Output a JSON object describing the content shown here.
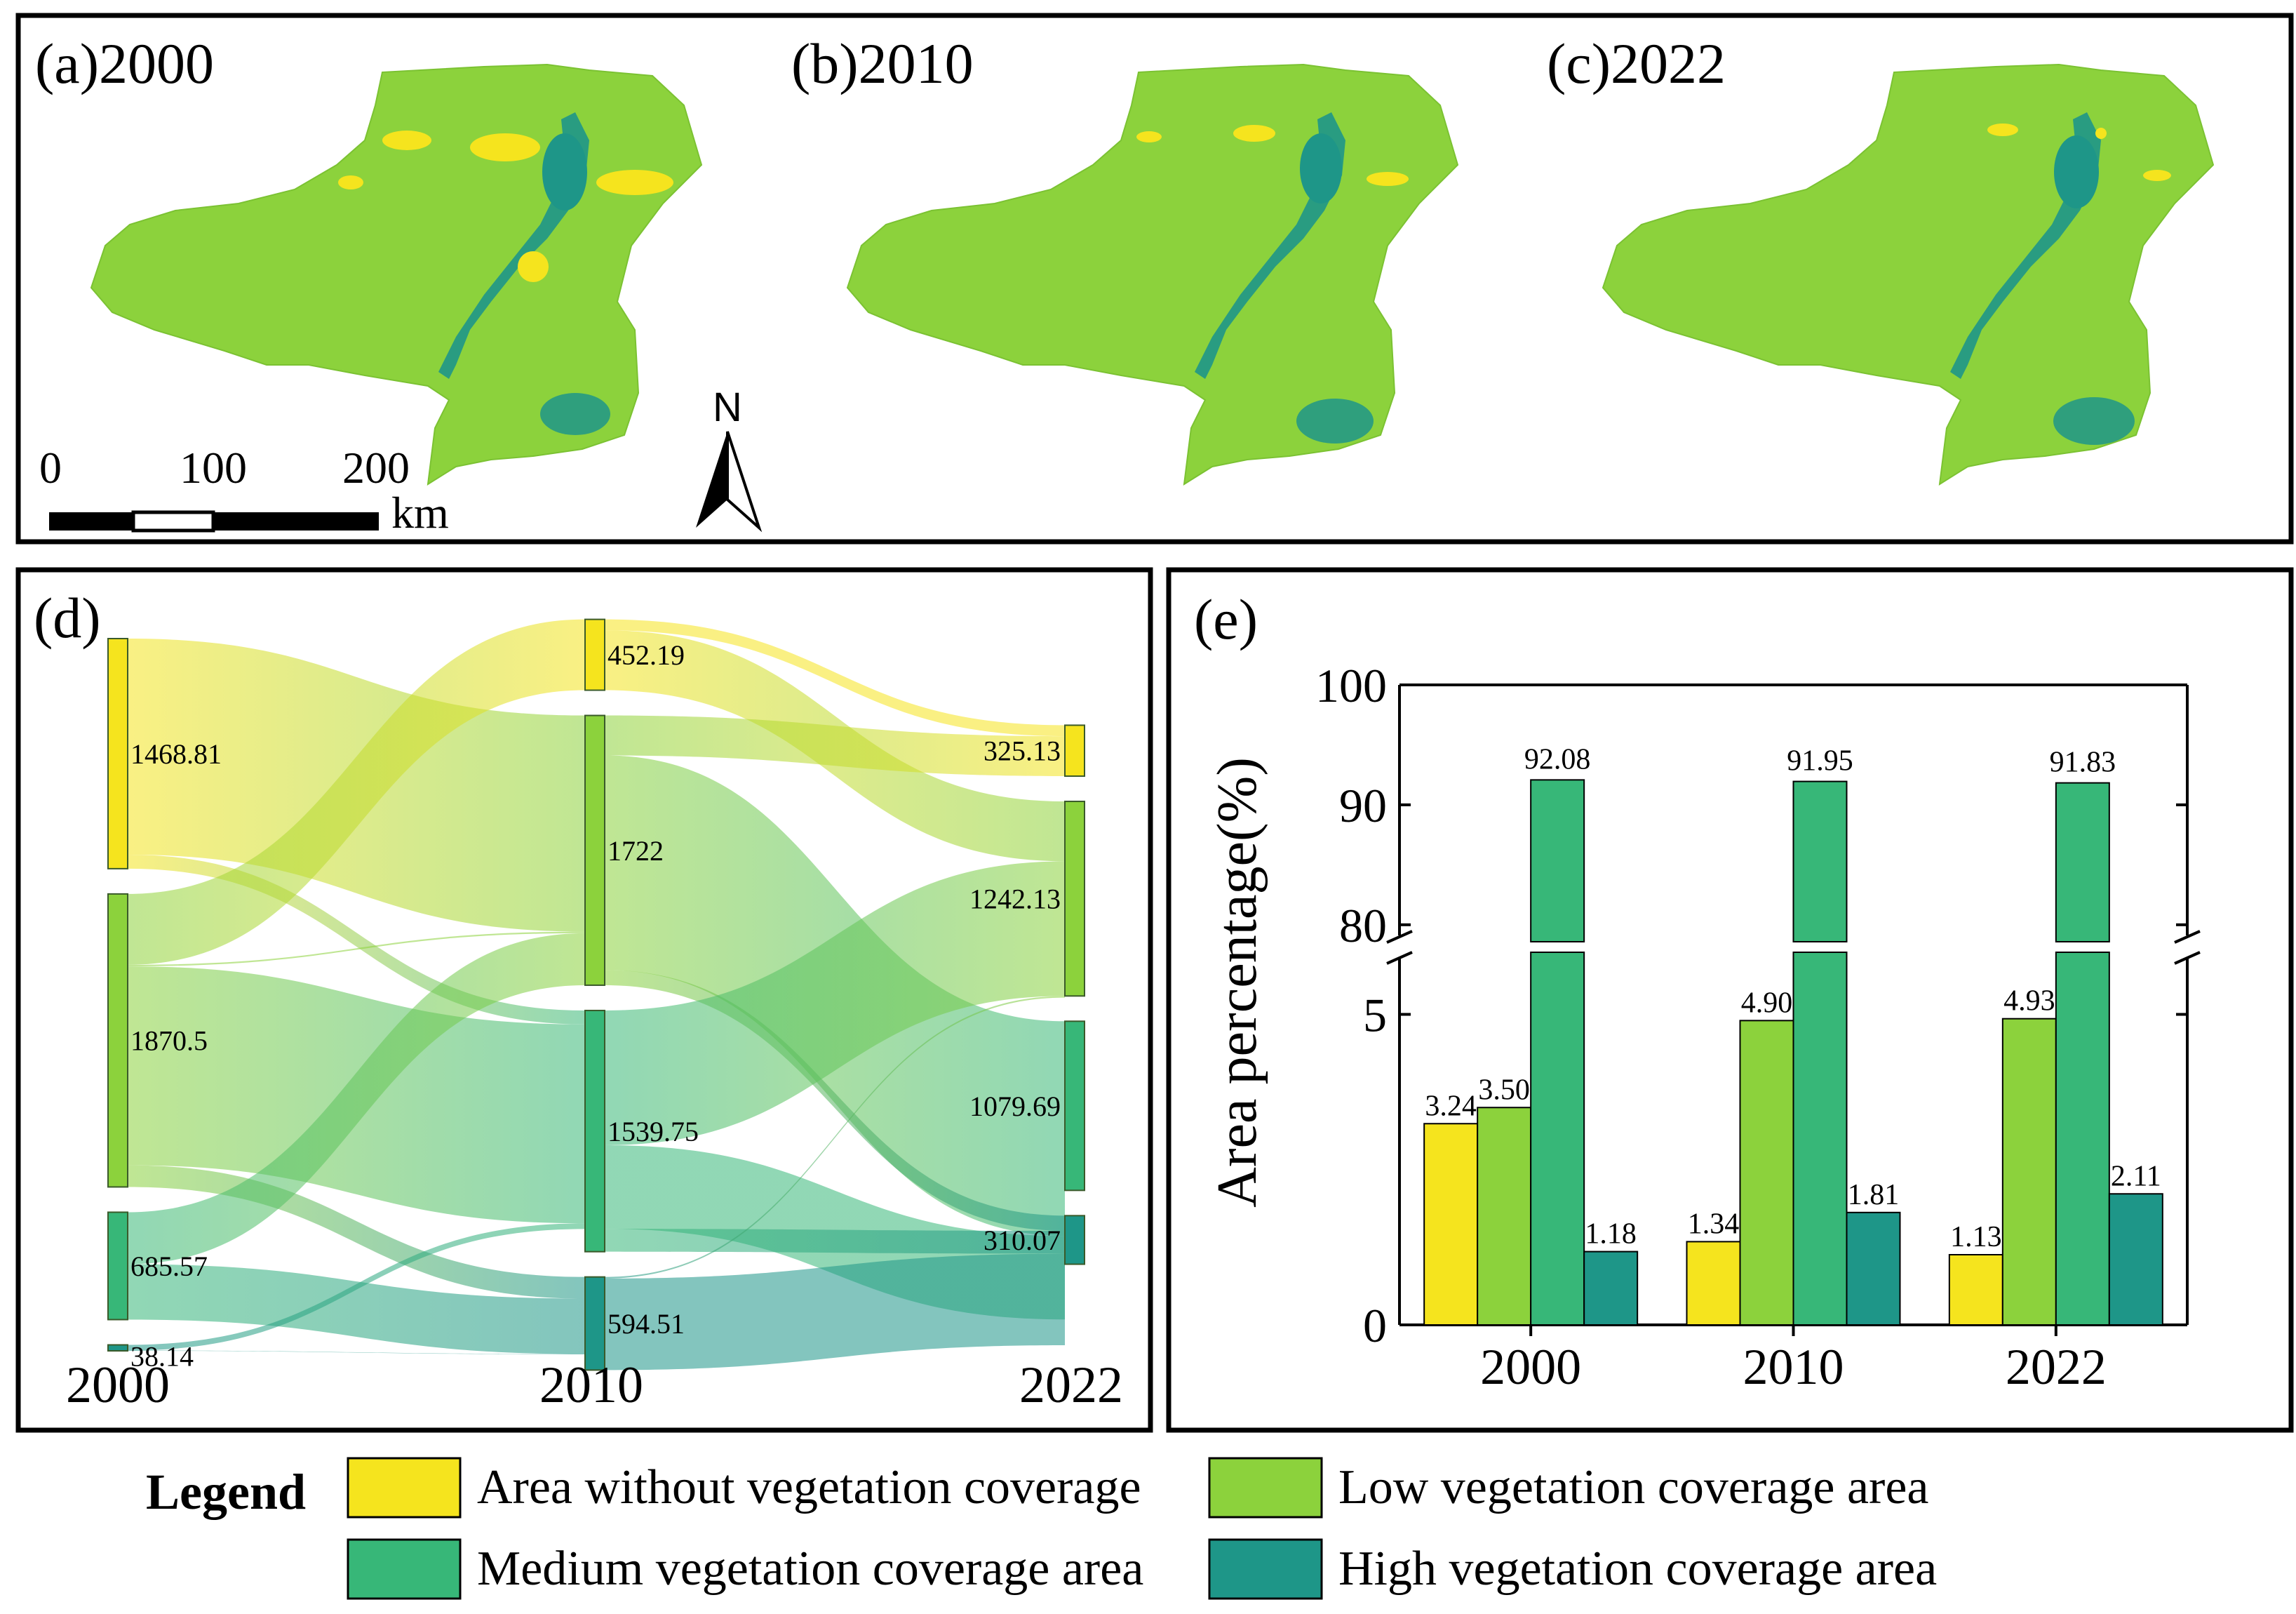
{
  "colors": {
    "none": "#F5E41E",
    "low": "#8CD23C",
    "medium": "#37B778",
    "high": "#1E9688",
    "frame": "#000000"
  },
  "panels": {
    "map_a": "(a)2000",
    "map_b": "(b)2010",
    "map_c": "(c)2022",
    "sankey": "(d)",
    "bars": "(e)"
  },
  "scalebar": {
    "ticks": [
      "0",
      "100",
      "200"
    ],
    "unit": "km"
  },
  "north": "N",
  "legend": {
    "title": "Legend",
    "items": [
      {
        "key": "none",
        "label": "Area without vegetation coverage"
      },
      {
        "key": "low",
        "label": "Low vegetation coverage area"
      },
      {
        "key": "medium",
        "label": "Medium vegetation coverage area"
      },
      {
        "key": "high",
        "label": "High vegetation coverage area"
      }
    ]
  },
  "chart_data": [
    {
      "type": "sankey",
      "title": "(d)",
      "years": [
        "2000",
        "2010",
        "2022"
      ],
      "nodes": {
        "2000": [
          {
            "cat": "none",
            "value": 1468.81,
            "label": "1468.81"
          },
          {
            "cat": "low",
            "value": 1870.5,
            "label": "1870.5"
          },
          {
            "cat": "medium",
            "value": 685.57,
            "label": "685.57"
          },
          {
            "cat": "high",
            "value": 38.14,
            "label": "38.14"
          }
        ],
        "2010": [
          {
            "cat": "none",
            "value": 452.19,
            "label": "452.19"
          },
          {
            "cat": "low",
            "value": 1722,
            "label": "1722"
          },
          {
            "cat": "medium",
            "value": 1539.75,
            "label": "1539.75"
          },
          {
            "cat": "high",
            "value": 594.51,
            "label": "594.51"
          }
        ],
        "2022": [
          {
            "cat": "none",
            "value": 325.13,
            "label": "325.13"
          },
          {
            "cat": "low",
            "value": 1242.13,
            "label": "1242.13"
          },
          {
            "cat": "medium",
            "value": 1079.69,
            "label": "1079.69"
          },
          {
            "cat": "high",
            "value": 310.07,
            "label": "310.07"
          }
        ]
      },
      "links_2000_2010": [
        {
          "from": "none",
          "to": "low",
          "value": 1380
        },
        {
          "from": "none",
          "to": "medium",
          "value": 88.81
        },
        {
          "from": "low",
          "to": "none",
          "value": 452.19
        },
        {
          "from": "low",
          "to": "low",
          "value": 10
        },
        {
          "from": "low",
          "to": "medium",
          "value": 1270
        },
        {
          "from": "low",
          "to": "high",
          "value": 138.31
        },
        {
          "from": "medium",
          "to": "low",
          "value": 332
        },
        {
          "from": "medium",
          "to": "high",
          "value": 353.57
        },
        {
          "from": "high",
          "to": "medium",
          "value": 36
        },
        {
          "from": "high",
          "to": "high",
          "value": 2.14
        }
      ],
      "links_2010_2022": [
        {
          "from": "none",
          "to": "none",
          "value": 70
        },
        {
          "from": "none",
          "to": "low",
          "value": 382.19
        },
        {
          "from": "low",
          "to": "none",
          "value": 255.13
        },
        {
          "from": "low",
          "to": "medium",
          "value": 1370
        },
        {
          "from": "low",
          "to": "high",
          "value": 96.87
        },
        {
          "from": "medium",
          "to": "low",
          "value": 860.13
        },
        {
          "from": "medium",
          "to": "medium",
          "value": 533.5
        },
        {
          "from": "medium",
          "to": "high",
          "value": 146.12
        },
        {
          "from": "high",
          "to": "low",
          "value": 10
        },
        {
          "from": "high",
          "to": "high",
          "value": 584.51
        }
      ]
    },
    {
      "type": "bar",
      "title": "(e)",
      "ylabel": "Area percentage(%)",
      "categories": [
        "2000",
        "2010",
        "2022"
      ],
      "series": [
        {
          "name": "Area without vegetation coverage",
          "key": "none",
          "values": [
            3.24,
            1.34,
            1.13
          ],
          "labels": [
            "3.24",
            "1.34",
            "1.13"
          ]
        },
        {
          "name": "Low vegetation coverage area",
          "key": "low",
          "values": [
            3.5,
            4.9,
            4.93
          ],
          "labels": [
            "3.50",
            "4.90",
            "4.93"
          ]
        },
        {
          "name": "Medium vegetation coverage area",
          "key": "medium",
          "values": [
            92.08,
            91.95,
            91.83
          ],
          "labels": [
            "92.08",
            "91.95",
            "91.83"
          ]
        },
        {
          "name": "High vegetation coverage area",
          "key": "high",
          "values": [
            1.18,
            1.81,
            2.11
          ],
          "labels": [
            "1.18",
            "1.81",
            "2.11"
          ]
        }
      ],
      "lower_axis": {
        "ylim": [
          0,
          6
        ],
        "ticks": [
          0,
          5
        ],
        "tick_labels": [
          "0",
          "5"
        ]
      },
      "upper_axis": {
        "ylim": [
          78,
          100
        ],
        "ticks": [
          80,
          90,
          100
        ],
        "tick_labels": [
          "80",
          "90",
          "100"
        ]
      },
      "axis_break": true
    }
  ]
}
